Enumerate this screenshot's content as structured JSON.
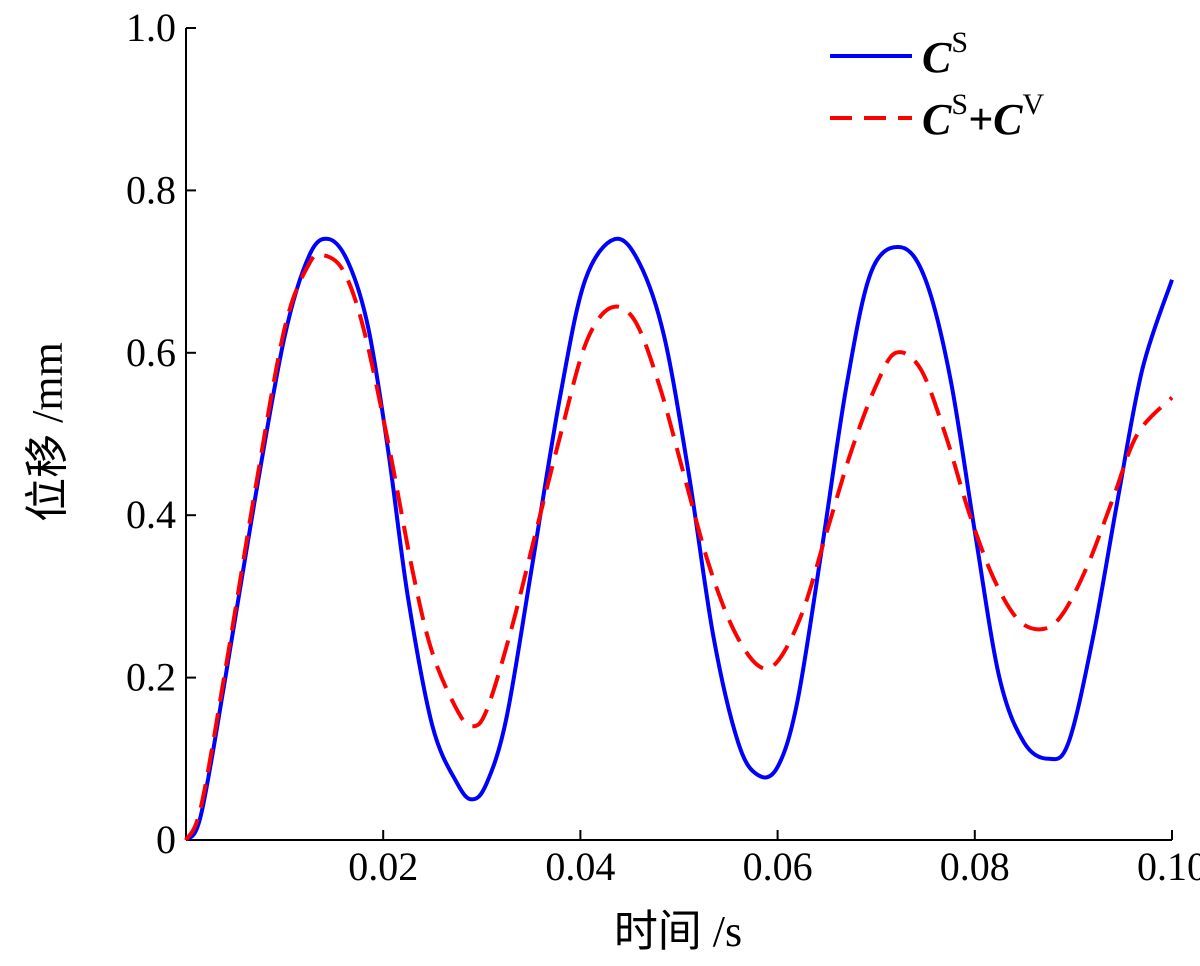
{
  "chart_data": {
    "type": "line",
    "xlabel": "时间 /s",
    "ylabel": "位移 /mm",
    "xlim": [
      0,
      0.1
    ],
    "ylim": [
      0,
      1.0
    ],
    "x_ticks": [
      0.02,
      0.04,
      0.06,
      0.08,
      0.1
    ],
    "x_tick_labels": [
      "0.02",
      "0.04",
      "0.06",
      "0.08",
      "0.10"
    ],
    "y_ticks": [
      0,
      0.2,
      0.4,
      0.6,
      0.8,
      1.0
    ],
    "y_tick_labels": [
      "0",
      "0.2",
      "0.4",
      "0.6",
      "0.8",
      "1.0"
    ],
    "grid": false,
    "legend_position": "top-right",
    "series": [
      {
        "name": "C^S",
        "legend": {
          "base": "C",
          "sup": "S"
        },
        "color": "#0000ff",
        "style": "solid",
        "x": [
          0,
          0.0015,
          0.004,
          0.007,
          0.01,
          0.0125,
          0.0145,
          0.0165,
          0.0185,
          0.0205,
          0.0225,
          0.025,
          0.0275,
          0.029,
          0.0305,
          0.0325,
          0.035,
          0.038,
          0.0405,
          0.0435,
          0.046,
          0.0485,
          0.051,
          0.0535,
          0.056,
          0.058,
          0.06,
          0.062,
          0.0645,
          0.067,
          0.0695,
          0.0725,
          0.075,
          0.0775,
          0.08,
          0.0825,
          0.085,
          0.0875,
          0.0895,
          0.092,
          0.0945,
          0.097,
          0.1
        ],
        "y": [
          0,
          0.03,
          0.2,
          0.42,
          0.62,
          0.72,
          0.74,
          0.71,
          0.63,
          0.48,
          0.3,
          0.14,
          0.07,
          0.05,
          0.07,
          0.15,
          0.33,
          0.55,
          0.69,
          0.74,
          0.71,
          0.62,
          0.45,
          0.25,
          0.12,
          0.08,
          0.09,
          0.17,
          0.36,
          0.56,
          0.7,
          0.73,
          0.69,
          0.57,
          0.38,
          0.2,
          0.12,
          0.1,
          0.12,
          0.25,
          0.42,
          0.58,
          0.69
        ]
      },
      {
        "name": "C^S+C^V",
        "legend": {
          "base": "C",
          "sup": "S",
          "plus": "+",
          "base2": "C",
          "sup2": "V"
        },
        "color": "#ff0000",
        "style": "dashed",
        "x": [
          0,
          0.0015,
          0.004,
          0.007,
          0.01,
          0.0125,
          0.014,
          0.016,
          0.018,
          0.0205,
          0.023,
          0.025,
          0.0275,
          0.029,
          0.0305,
          0.033,
          0.0355,
          0.038,
          0.0405,
          0.043,
          0.0455,
          0.048,
          0.0505,
          0.053,
          0.0555,
          0.058,
          0.06,
          0.0625,
          0.065,
          0.0675,
          0.07,
          0.072,
          0.0745,
          0.077,
          0.0795,
          0.082,
          0.0845,
          0.087,
          0.089,
          0.0915,
          0.094,
          0.0965,
          0.1
        ],
        "y": [
          0,
          0.04,
          0.21,
          0.43,
          0.63,
          0.71,
          0.72,
          0.7,
          0.63,
          0.49,
          0.33,
          0.23,
          0.16,
          0.14,
          0.16,
          0.26,
          0.38,
          0.5,
          0.61,
          0.655,
          0.64,
          0.56,
          0.45,
          0.34,
          0.26,
          0.215,
          0.22,
          0.28,
          0.38,
          0.48,
          0.56,
          0.6,
          0.58,
          0.5,
          0.4,
          0.32,
          0.27,
          0.26,
          0.28,
          0.34,
          0.42,
          0.5,
          0.545
        ]
      }
    ]
  }
}
